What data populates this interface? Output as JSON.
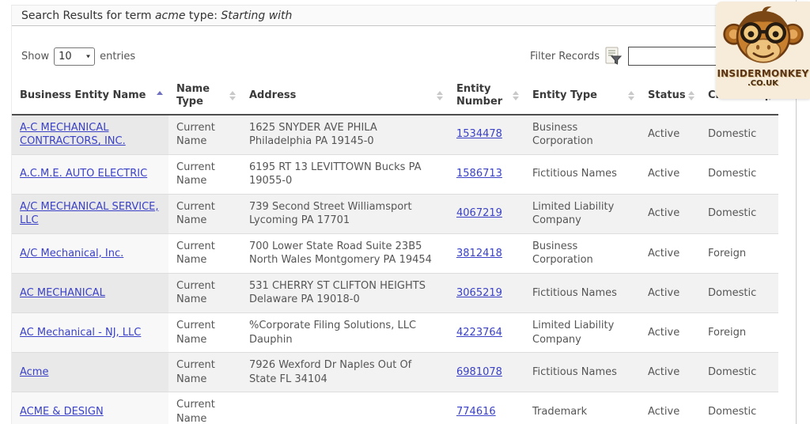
{
  "title": {
    "prefix": "Search Results for term ",
    "term": "acme",
    "middle": " type: ",
    "type": "Starting with"
  },
  "controls": {
    "show_label": "Show",
    "entries_value": "10",
    "entries_label": "entries",
    "filter_label": "Filter Records",
    "filter_value": ""
  },
  "logo": {
    "line1": "INSIDERMONKEY",
    "line2": ".CO.UK"
  },
  "colors": {
    "link": "#3a41c6",
    "sort_active_arrow": "#7070c0",
    "logo_background": "#f6ecd9",
    "logo_text": "#5a3414"
  },
  "table": {
    "columns": [
      {
        "label": "Business Entity Name",
        "sort": "asc"
      },
      {
        "label": "Name Type",
        "sort": "none"
      },
      {
        "label": "Address",
        "sort": "none"
      },
      {
        "label": "Entity Number",
        "sort": "none"
      },
      {
        "label": "Entity Type",
        "sort": "none"
      },
      {
        "label": "Status",
        "sort": "none"
      },
      {
        "label": "Citizenship",
        "sort": "none"
      }
    ],
    "rows": [
      {
        "name": "A-C MECHANICAL CONTRACTORS, INC.",
        "name_type": "Current Name",
        "address": "1625 SNYDER AVE PHILA Philadelphia PA 19145-0",
        "entity_number": "1534478",
        "entity_type": "Business Corporation",
        "status": "Active",
        "citizenship": "Domestic"
      },
      {
        "name": "A.C.M.E. AUTO ELECTRIC",
        "name_type": "Current Name",
        "address": "6195 RT 13 LEVITTOWN Bucks PA 19055-0",
        "entity_number": "1586713",
        "entity_type": "Fictitious Names",
        "status": "Active",
        "citizenship": "Domestic"
      },
      {
        "name": "A/C MECHANICAL SERVICE, LLC",
        "name_type": "Current Name",
        "address": "739 Second Street Williamsport Lycoming PA 17701",
        "entity_number": "4067219",
        "entity_type": "Limited Liability Company",
        "status": "Active",
        "citizenship": "Domestic"
      },
      {
        "name": "A/C Mechanical, Inc.",
        "name_type": "Current Name",
        "address": "700 Lower State Road Suite 23B5 North Wales Montgomery PA 19454",
        "entity_number": "3812418",
        "entity_type": "Business Corporation",
        "status": "Active",
        "citizenship": "Foreign"
      },
      {
        "name": "AC MECHANICAL",
        "name_type": "Current Name",
        "address": "531 CHERRY ST CLIFTON HEIGHTS Delaware PA 19018-0",
        "entity_number": "3065219",
        "entity_type": "Fictitious Names",
        "status": "Active",
        "citizenship": "Domestic"
      },
      {
        "name": "AC Mechanical - NJ, LLC",
        "name_type": "Current Name",
        "address": "%Corporate Filing Solutions, LLC Dauphin",
        "entity_number": "4223764",
        "entity_type": "Limited Liability Company",
        "status": "Active",
        "citizenship": "Foreign"
      },
      {
        "name": "Acme",
        "name_type": "Current Name",
        "address": "7926 Wexford Dr Naples Out Of State FL 34104",
        "entity_number": "6981078",
        "entity_type": "Fictitious Names",
        "status": "Active",
        "citizenship": "Domestic"
      },
      {
        "name": "ACME & DESIGN",
        "name_type": "Current Name",
        "address": "",
        "entity_number": "774616",
        "entity_type": "Trademark",
        "status": "Active",
        "citizenship": "Domestic"
      }
    ]
  }
}
